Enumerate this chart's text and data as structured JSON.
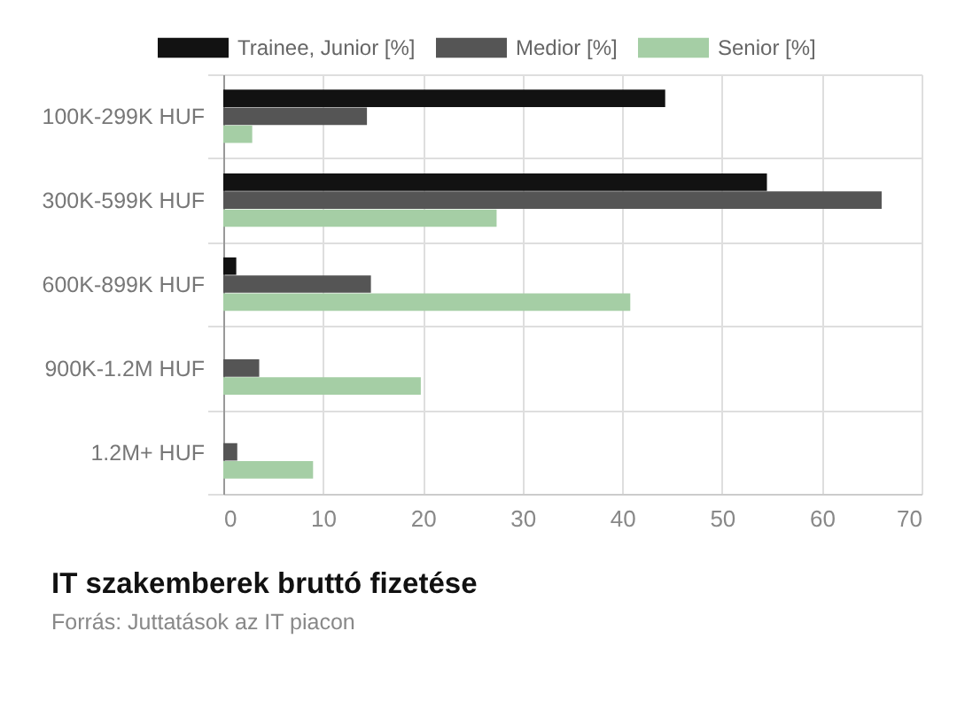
{
  "chart_data": {
    "type": "bar",
    "orientation": "horizontal",
    "title": "IT szakemberek bruttó fizetése",
    "annotations": [
      "Forrás: Juttatások az IT piacon"
    ],
    "categories": [
      "100K-299K HUF",
      "300K-599K HUF",
      "600K-899K HUF",
      "900K-1.2M HUF",
      "1.2M+ HUF"
    ],
    "series": [
      {
        "name": "Trainee, Junior [%]",
        "color": "#121212",
        "values": [
          44.3,
          54.5,
          1.3,
          null,
          null
        ]
      },
      {
        "name": "Medior [%]",
        "color": "#555555",
        "values": [
          14.4,
          66.0,
          14.8,
          3.6,
          1.4
        ]
      },
      {
        "name": "Senior [%]",
        "color": "#a5cea5",
        "values": [
          2.9,
          27.4,
          40.8,
          19.8,
          9.0
        ]
      }
    ],
    "xlim": [
      0,
      70
    ],
    "xticks": [
      0,
      10,
      20,
      30,
      40,
      50,
      60,
      70
    ],
    "grid": true,
    "legend": "top"
  }
}
